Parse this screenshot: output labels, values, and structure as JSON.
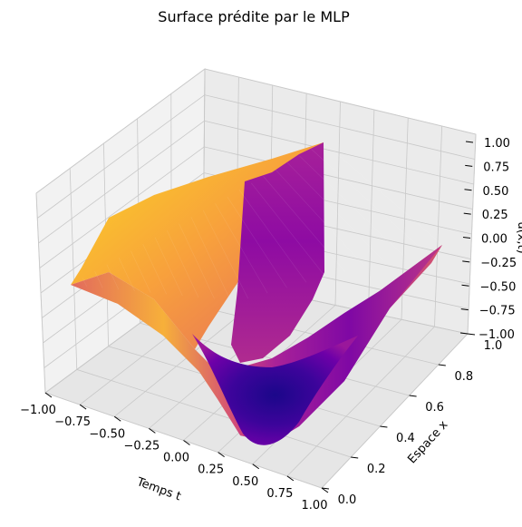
{
  "chart_data": {
    "type": "surface",
    "title": "Surface prédite par le MLP",
    "xlabel": "Temps t",
    "ylabel": "Espace x",
    "zlabel": "u(x,t)",
    "x_ticks": [
      "−1.00",
      "−0.75",
      "−0.50",
      "−0.25",
      "0.00",
      "0.25",
      "0.50",
      "0.75",
      "1.00"
    ],
    "y_ticks": [
      "0.0",
      "0.2",
      "0.4",
      "0.6",
      "0.8",
      "1.0"
    ],
    "z_ticks": [
      "1.00",
      "0.75",
      "0.50",
      "0.25",
      "0.00",
      "−0.25",
      "−0.50",
      "−0.75",
      "−1.00"
    ],
    "xlim": [
      -1,
      1
    ],
    "ylim": [
      0,
      1
    ],
    "zlim": [
      -1,
      1
    ],
    "colormap": "plasma",
    "grid": true,
    "surface_samples": {
      "t": [
        -1.0,
        -0.5,
        0.0,
        0.05,
        0.15,
        0.4,
        0.7,
        1.0
      ],
      "x": [
        0.0,
        0.5,
        1.0
      ],
      "u_at_x0": [
        -0.1,
        0.45,
        0.2,
        -0.6,
        -1.0,
        -0.75,
        -0.45,
        -0.15
      ],
      "u_at_x1": [
        0.4,
        0.75,
        0.9,
        0.9,
        0.6,
        0.35,
        0.2,
        0.05
      ]
    }
  }
}
